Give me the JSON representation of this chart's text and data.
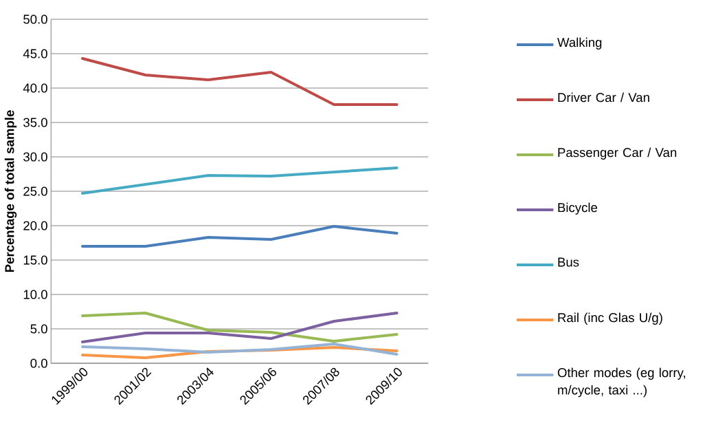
{
  "chart_data": {
    "type": "line",
    "ylabel": "Percentage of total sample",
    "categories": [
      "1999/00",
      "2001/02",
      "2003/04",
      "2005/06",
      "2007/08",
      "2009/10"
    ],
    "ylim": [
      0,
      50
    ],
    "yticks": [
      {
        "value": 0,
        "label": "0.0"
      },
      {
        "value": 5,
        "label": "5.0"
      },
      {
        "value": 10,
        "label": "10.0"
      },
      {
        "value": 15,
        "label": "15.0"
      },
      {
        "value": 20,
        "label": "20.0"
      },
      {
        "value": 25,
        "label": "25.0"
      },
      {
        "value": 30,
        "label": "30.0"
      },
      {
        "value": 35,
        "label": "35.0"
      },
      {
        "value": 40,
        "label": "40.0"
      },
      {
        "value": 45,
        "label": "45.0"
      },
      {
        "value": 50,
        "label": "50.0"
      }
    ],
    "grid": "y",
    "legend": "right",
    "marker": "none",
    "line_style": "solid",
    "series": [
      {
        "name": "Walking",
        "color": "#4a7ebb",
        "values": [
          17.0,
          17.0,
          18.3,
          18.0,
          19.9,
          18.9
        ]
      },
      {
        "name": "Driver Car / Van",
        "color": "#be4b48",
        "values": [
          44.3,
          41.9,
          41.2,
          42.3,
          37.6,
          37.6
        ]
      },
      {
        "name": "Passenger Car / Van",
        "color": "#98b954",
        "values": [
          6.9,
          7.3,
          4.8,
          4.5,
          3.2,
          4.2
        ]
      },
      {
        "name": "Bicycle",
        "color": "#7d60a0",
        "values": [
          3.1,
          4.4,
          4.4,
          3.6,
          6.1,
          7.3
        ]
      },
      {
        "name": "Bus",
        "color": "#46aac5",
        "values": [
          24.7,
          26.0,
          27.3,
          27.2,
          27.8,
          28.4
        ]
      },
      {
        "name": "Rail (inc Glas U/g)",
        "color": "#f79646",
        "values": [
          1.2,
          0.8,
          1.7,
          1.9,
          2.3,
          1.8
        ]
      },
      {
        "name": "Other modes (eg lorry, m/cycle, taxi ...)",
        "color": "#95b3d7",
        "values": [
          2.4,
          2.1,
          1.6,
          2.0,
          2.8,
          1.3
        ]
      }
    ]
  }
}
